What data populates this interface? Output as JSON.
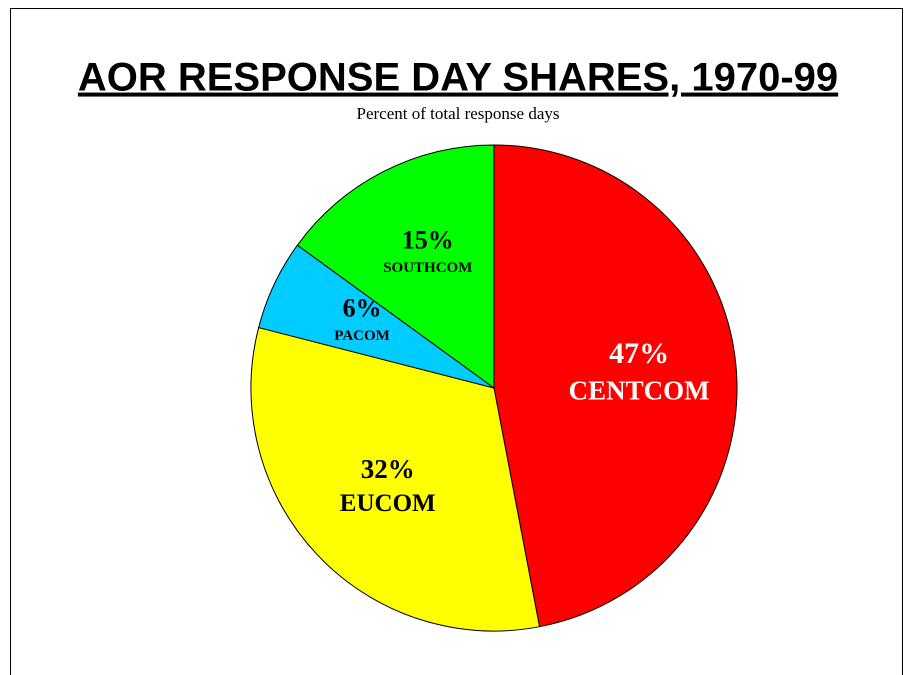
{
  "chart_data": {
    "type": "pie",
    "title": "AOR RESPONSE DAY SHARES, 1970-99",
    "subtitle": "Percent of total response days",
    "categories": [
      "CENTCOM",
      "EUCOM",
      "PACOM",
      "SOUTHCOM"
    ],
    "values": [
      47,
      32,
      6,
      15
    ],
    "value_labels": [
      "47%",
      "32%",
      "6%",
      "15%"
    ],
    "colors": [
      "#ff0000",
      "#ffff00",
      "#00ccff",
      "#00ff00"
    ]
  }
}
